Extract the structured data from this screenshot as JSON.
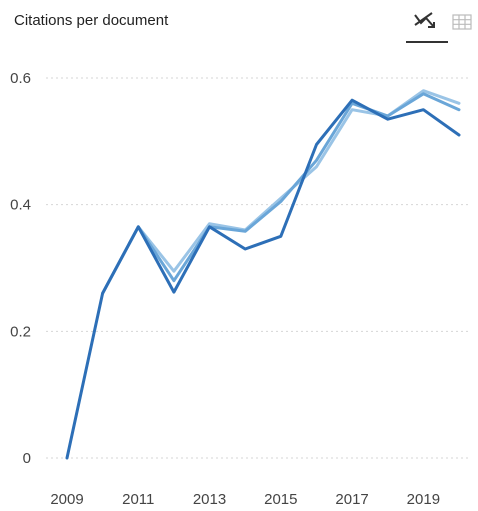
{
  "header": {
    "title": "Citations per document",
    "chart_view_icon": "line-chart-icon",
    "table_view_icon": "table-grid-icon"
  },
  "chart_data": {
    "type": "line",
    "title": "Citations per document",
    "xlabel": "",
    "ylabel": "",
    "x": [
      2009,
      2010,
      2011,
      2012,
      2013,
      2014,
      2015,
      2016,
      2017,
      2018,
      2019,
      2020
    ],
    "x_ticks": [
      "2009",
      "2011",
      "2013",
      "2015",
      "2017",
      "2019"
    ],
    "y_ticks": [
      "0",
      "0.2",
      "0.4",
      "0.6"
    ],
    "ylim": [
      0,
      0.6
    ],
    "grid": "horizontal dotted",
    "series": [
      {
        "color": "#9ac4e6",
        "values": [
          null,
          0.26,
          0.365,
          0.295,
          0.37,
          0.36,
          0.41,
          0.46,
          0.55,
          0.54,
          0.58,
          0.56
        ]
      },
      {
        "color": "#6aa6d8",
        "values": [
          null,
          0.26,
          0.365,
          0.28,
          0.365,
          0.358,
          0.405,
          0.47,
          0.56,
          0.54,
          0.575,
          0.55
        ]
      },
      {
        "color": "#2d6fb7",
        "values": [
          0,
          0.26,
          0.365,
          0.262,
          0.365,
          0.33,
          0.35,
          0.495,
          0.565,
          0.535,
          0.55,
          0.51
        ]
      }
    ]
  }
}
